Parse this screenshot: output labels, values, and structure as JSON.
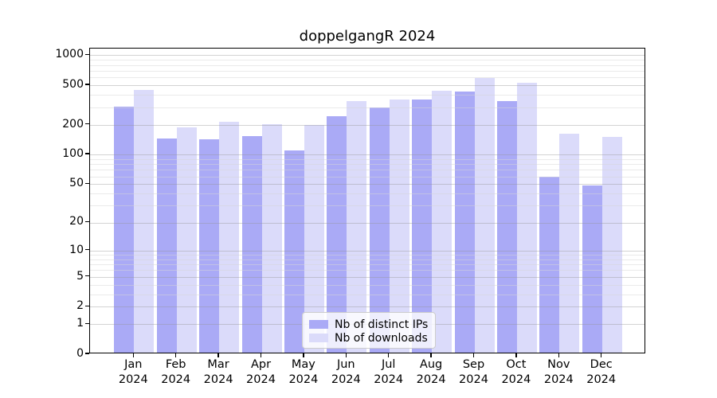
{
  "chart_data": {
    "type": "bar",
    "title": "doppelgangR 2024",
    "year": "2024",
    "categories": [
      "Jan",
      "Feb",
      "Mar",
      "Apr",
      "May",
      "Jun",
      "Jul",
      "Aug",
      "Sep",
      "Oct",
      "Nov",
      "Dec"
    ],
    "series": [
      {
        "name": "Nb of distinct IPs",
        "color": "#aaaaf6",
        "values": [
          291,
          141,
          138,
          147,
          106,
          233,
          289,
          349,
          414,
          336,
          57,
          47
        ]
      },
      {
        "name": "Nb of downloads",
        "color": "#dbdbfa",
        "values": [
          428,
          180,
          206,
          194,
          190,
          334,
          344,
          425,
          564,
          508,
          155,
          144
        ]
      }
    ],
    "yscale": "log1p",
    "ylim": [
      0,
      1170
    ],
    "yticks": [
      0,
      1,
      2,
      5,
      10,
      20,
      50,
      100,
      200,
      500,
      1000
    ],
    "minor_gridlines": [
      3,
      4,
      6,
      7,
      8,
      9,
      30,
      40,
      60,
      70,
      80,
      90,
      300,
      400,
      600,
      700,
      800,
      900
    ],
    "grid": true,
    "legend_position": "inside-bottom-center",
    "axis_color": "#000000",
    "background_color": "#ffffff"
  }
}
